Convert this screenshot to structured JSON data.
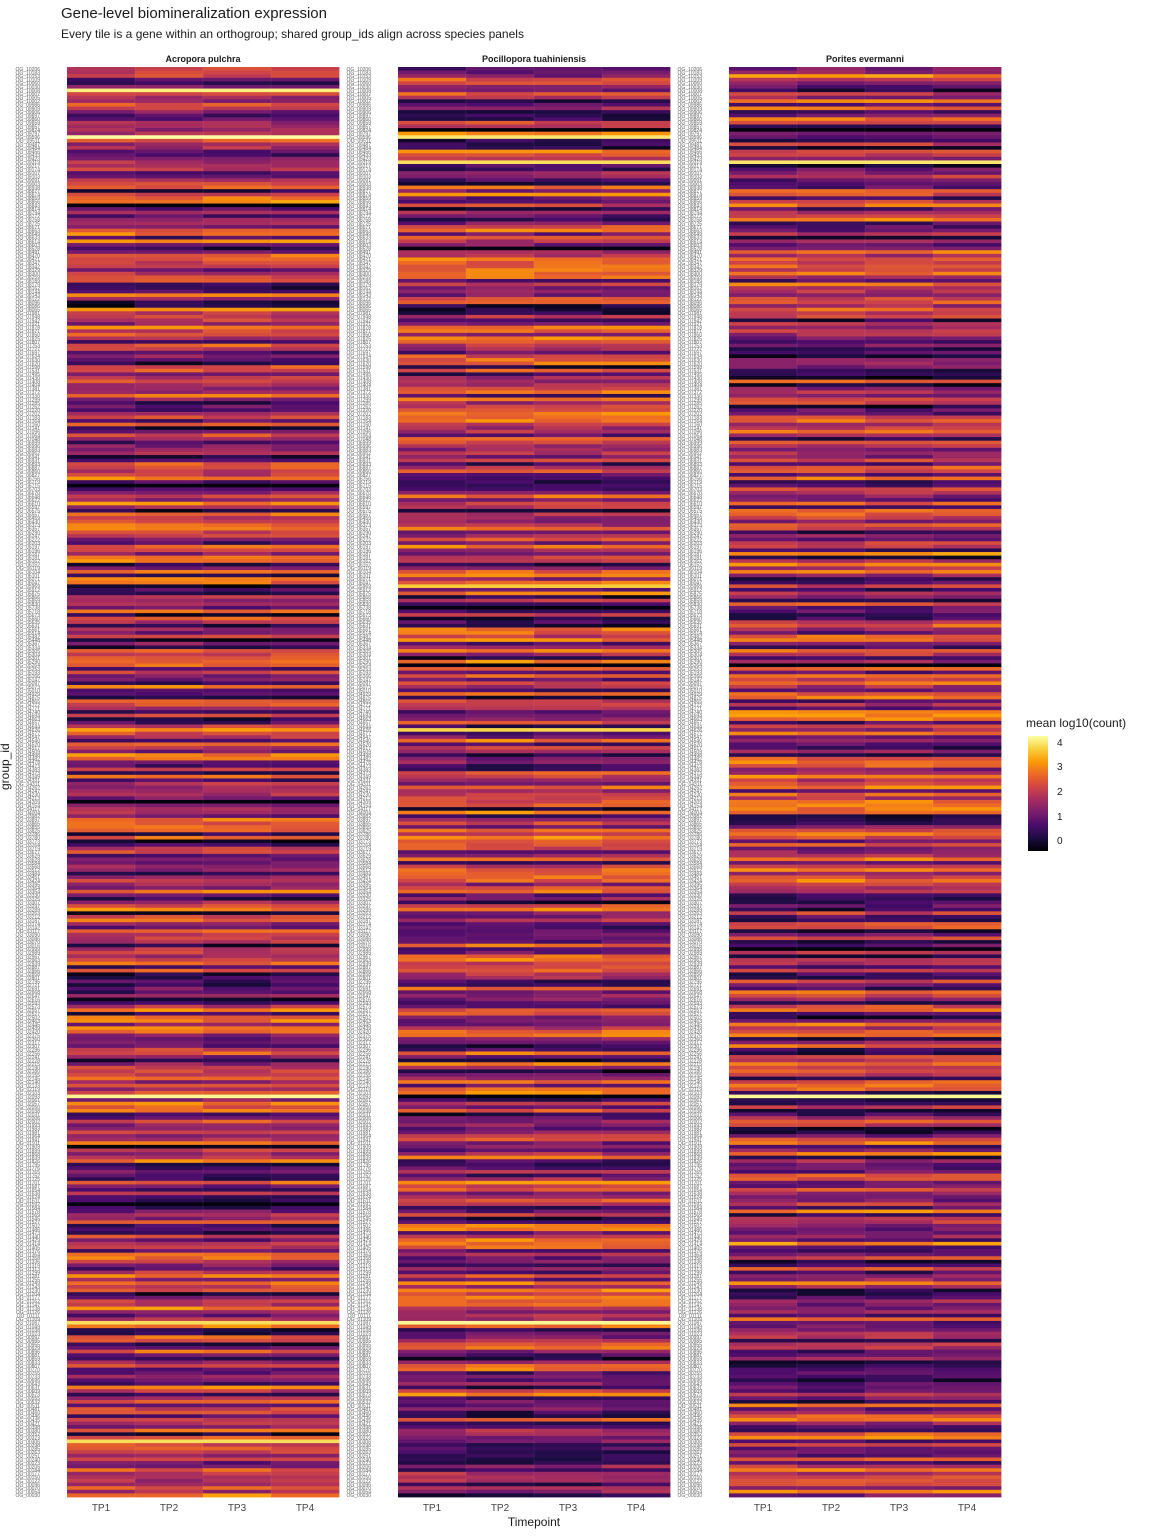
{
  "chart_data": {
    "type": "heatmap",
    "title": "Gene-level biomineralization expression",
    "subtitle": "Every tile is a gene within an orthogroup; shared group_ids align across species panels",
    "xlabel": "Timepoint",
    "ylabel": "group_id",
    "x": [
      "TP1",
      "TP2",
      "TP3",
      "TP4"
    ],
    "panels": [
      "Acropora pulchra",
      "Pocillopora tuahiniensis",
      "Porites evermanni"
    ],
    "group_ids_top_to_bottom": [
      "OG_10206",
      "OG_10183",
      "OG_10153",
      "OG_10109",
      "OG_10060",
      "OG_10030",
      "OG_10008",
      "OG_10007",
      "OG_10005",
      "OG_10002",
      "OG_09986",
      "OG_09909",
      "OG_09906",
      "OG_09897",
      "OG_09860",
      "OG_09859",
      "OG_09857",
      "OG_09824",
      "OG_09797",
      "OG_09596",
      "OG_09511",
      "OG_09487",
      "OG_09484",
      "OG_09456",
      "OG_09433",
      "OG_09423",
      "OG_09319",
      "OG_09217",
      "OG_09174",
      "OG_09107",
      "OG_09103",
      "OG_09091",
      "OG_09003",
      "OG_08938",
      "OG_08877",
      "OG_08874",
      "OG_08859",
      "OG_08856",
      "OG_08843",
      "OG_08814",
      "OG_08794",
      "OG_08772",
      "OG_08758",
      "OG_08725",
      "OG_08671",
      "OG_08663",
      "OG_08649",
      "OG_08633",
      "OG_08614",
      "OG_08603",
      "OG_08528",
      "OG_08491",
      "OG_08470",
      "OG_08421",
      "OG_08347",
      "OG_08342",
      "OG_08329",
      "OG_08300",
      "OG_08259",
      "OG_08189",
      "OG_08179",
      "OG_08162",
      "OG_08144",
      "OG_08143",
      "OG_08122",
      "OG_08096",
      "OG_08086",
      "OG_08065",
      "OG_07981",
      "OG_07948",
      "OG_07942",
      "OG_07921",
      "OG_07878",
      "OG_07871",
      "OG_07850",
      "OG_07825",
      "OG_07807",
      "OG_07753",
      "OG_07727",
      "OG_07697",
      "OG_07634",
      "OG_07630",
      "OG_07620",
      "OG_07598",
      "OG_07531",
      "OG_07495",
      "OG_07430",
      "OG_07408",
      "OG_07404",
      "OG_07381",
      "OG_07372",
      "OG_07330",
      "OG_07299",
      "OG_07285",
      "OG_07262",
      "OG_07220",
      "OG_07202",
      "OG_07183",
      "OG_07164",
      "OG_07160",
      "OG_07141",
      "OG_07096",
      "OG_07064",
      "OG_07048",
      "OG_06999",
      "OG_06996",
      "OG_06983",
      "OG_06952",
      "OG_06941",
      "OG_06931",
      "OG_06893",
      "OG_06887",
      "OG_06860",
      "OG_06827",
      "OG_06756",
      "OG_06719",
      "OG_06715",
      "OG_06703",
      "OG_06670",
      "OG_06648",
      "OG_06622",
      "OG_06610",
      "OG_06597",
      "OG_06575",
      "OG_06557",
      "OG_06459",
      "OG_06430",
      "OG_06373",
      "OG_06357",
      "OG_06290",
      "OG_06247",
      "OG_06222",
      "OG_06203",
      "OG_06197",
      "OG_06196",
      "OG_06187",
      "OG_06181",
      "OG_06162",
      "OG_06152",
      "OG_06119",
      "OG_06104",
      "OG_06101",
      "OG_06071",
      "OG_06047",
      "OG_05969",
      "OG_05912",
      "OG_05875",
      "OG_05866",
      "OG_05859",
      "OG_05830",
      "OG_05738",
      "OG_05718",
      "OG_05673",
      "OG_05660",
      "OG_05635",
      "OG_05631",
      "OG_05561",
      "OG_05514",
      "OG_05482",
      "OG_05448",
      "OG_05367",
      "OG_05334",
      "OG_05305",
      "OG_05304",
      "OG_05301",
      "OG_05290",
      "OG_05264",
      "OG_05253",
      "OG_05193",
      "OG_05166",
      "OG_05147",
      "OG_05097",
      "OG_05073",
      "OG_05010",
      "OG_04929",
      "OG_04875",
      "OG_04865",
      "OG_04772",
      "OG_04771",
      "OG_04740",
      "OG_04694",
      "OG_04663",
      "OG_04657",
      "OG_04644",
      "OG_04626",
      "OG_04577",
      "OG_04547",
      "OG_04540",
      "OG_04520",
      "OG_04517",
      "OG_04509",
      "OG_04498",
      "OG_04482",
      "OG_04478",
      "OG_04473",
      "OG_04383",
      "OG_04373",
      "OG_04349",
      "OG_04331",
      "OG_04311",
      "OG_04262",
      "OG_04247",
      "OG_04230",
      "OG_04213",
      "OG_04209",
      "OG_04154",
      "OG_04117",
      "OG_04004",
      "OG_03982",
      "OG_03897",
      "OG_03865",
      "OG_03855",
      "OG_03825",
      "OG_03786",
      "OG_03780",
      "OG_03773",
      "OG_03764",
      "OG_03719",
      "OG_03677",
      "OG_03629",
      "OG_03628",
      "OG_03584",
      "OG_03568",
      "OG_03512",
      "OG_03484",
      "OG_03451",
      "OG_03424",
      "OG_03395",
      "OG_03364",
      "OG_03354",
      "OG_03330",
      "OG_03325",
      "OG_03307",
      "OG_03297",
      "OG_03289",
      "OG_03263",
      "OG_03212",
      "OG_03187",
      "OG_03174",
      "OG_03142",
      "OG_03117",
      "OG_03090",
      "OG_03086",
      "OG_03070",
      "OG_03016",
      "OG_02999",
      "OG_02989",
      "OG_02967",
      "OG_02963",
      "OG_02939",
      "OG_02887",
      "OG_02866",
      "OG_02858",
      "OG_02801",
      "OG_02795",
      "OG_02721",
      "OG_02691",
      "OG_02668",
      "OG_02647",
      "OG_02616",
      "OG_02593",
      "OG_02573",
      "OG_02557",
      "OG_02527",
      "OG_02502",
      "OG_02463",
      "OG_02445",
      "OG_02439",
      "OG_02420",
      "OG_02375",
      "OG_02360",
      "OG_02317",
      "OG_02307",
      "OG_02296",
      "OG_02256",
      "OG_02241",
      "OG_02228",
      "OG_02215",
      "OG_02190",
      "OG_02180",
      "OG_02155",
      "OG_02145",
      "OG_02140",
      "OG_02133",
      "OG_02119",
      "OG_02103",
      "OG_02093",
      "OG_02061",
      "OG_02057",
      "OG_02050",
      "OG_02038",
      "OG_02031",
      "OG_02006",
      "OG_02002",
      "OG_01993",
      "OG_01983",
      "OG_01981",
      "OG_01964",
      "OG_01941",
      "OG_01911",
      "OG_01909",
      "OG_01899",
      "OG_01868",
      "OG_01839",
      "OG_01826",
      "OG_01795",
      "OG_01776",
      "OG_01765",
      "OG_01752",
      "OG_01725",
      "OG_01701",
      "OG_01687",
      "OG_01654",
      "OG_01638",
      "OG_01624",
      "OG_01611",
      "OG_01592",
      "OG_01584",
      "OG_01578",
      "OG_01569",
      "OG_01545",
      "OG_01527",
      "OG_01502",
      "OG_01486",
      "OG_01473",
      "OG_01440",
      "OG_01429",
      "OG_01414",
      "OG_01405",
      "OG_01376",
      "OG_01364",
      "OG_01358",
      "OG_01336",
      "OG_01319",
      "OG_01313",
      "OG_01299",
      "OG_01281",
      "OG_01255",
      "OG_01249",
      "OG_01243",
      "OG_01230",
      "OG_01204",
      "OG_01177",
      "OG_01162",
      "OG_01147",
      "OG_01138",
      "OG_01126",
      "OG_01111",
      "OG_01109",
      "OG_01087",
      "OG_01049",
      "OG_01038",
      "OG_01023",
      "OG_00997",
      "OG_00985",
      "OG_00955",
      "OG_00929",
      "OG_00896",
      "OG_00881",
      "OG_00859",
      "OG_00833",
      "OG_00807",
      "OG_00770",
      "OG_00755",
      "OG_00733",
      "OG_00696",
      "OG_00643",
      "OG_00631",
      "OG_00609",
      "OG_00573",
      "OG_00555",
      "OG_00532",
      "OG_00511",
      "OG_00481",
      "OG_00460",
      "OG_00446",
      "OG_00435",
      "OG_00421",
      "OG_00398",
      "OG_00380",
      "OG_00352",
      "OG_00323",
      "OG_00306",
      "OG_00298",
      "OG_00285",
      "OG_00263",
      "OG_00251",
      "OG_00240",
      "OG_00223",
      "OG_00206",
      "OG_00184",
      "OG_00177",
      "OG_00150",
      "OG_00122",
      "OG_00096",
      "OG_00070",
      "OG_00054",
      "OG_00030"
    ],
    "values_note": "",
    "legend": {
      "title": "mean log10(count)",
      "ticks": [
        0,
        1,
        2,
        3,
        4
      ],
      "range": [
        0,
        4.7
      ],
      "colormap": "inferno",
      "placement": "right"
    },
    "grid": false,
    "highlights": {
      "Acropora pulchra": {
        "OG_10008": 4.5,
        "OG_09596": 4.7,
        "OG_02093": 4.6,
        "OG_01087": 4.3,
        "OG_00306": 4.3,
        "OG_08843": 0.1,
        "OG_06715": 0.1,
        "OG_04209": 0.1,
        "OG_01592": 0.1
      },
      "Pocillopora tuahiniensis": {
        "OG_09596": 4.4,
        "OG_09319": 4.3,
        "OG_05969": 4.1,
        "OG_04626": 4.2,
        "OG_01087": 4.6,
        "OG_09824": 0.1,
        "OG_08528": 0.1,
        "OG_05738": 0.1,
        "OG_05264": 0.1,
        "OG_02093": 0.1
      },
      "Porites evermanni": {
        "OG_09319": 4.4,
        "OG_02093": 4.6,
        "OG_09824": 0.1,
        "OG_05264": 0.1,
        "OG_02999": 0.1,
        "OG_01686": 0.1
      }
    }
  },
  "legend_title": "mean log10(count)",
  "legend_ticks": [
    "4",
    "3",
    "2",
    "1",
    "0"
  ]
}
